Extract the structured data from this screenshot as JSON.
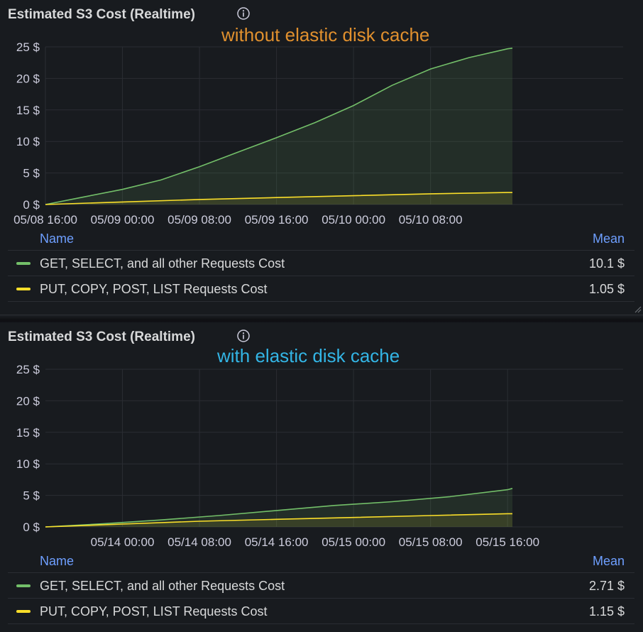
{
  "colors": {
    "get": "#73bf69",
    "put": "#fade2a",
    "annotation_top": "#e0902e",
    "annotation_bottom": "#33b5e5",
    "header": "#6e9fff"
  },
  "panels": [
    {
      "title": "Estimated S3 Cost (Realtime)",
      "annotation": "without elastic disk cache",
      "legend": {
        "name_header": "Name",
        "mean_header": "Mean",
        "rows": [
          {
            "name": "GET, SELECT, and all other Requests Cost",
            "mean": "10.1 $"
          },
          {
            "name": "PUT, COPY, POST, LIST Requests Cost",
            "mean": "1.05 $"
          }
        ]
      }
    },
    {
      "title": "Estimated S3 Cost (Realtime)",
      "annotation": "with elastic disk cache",
      "legend": {
        "name_header": "Name",
        "mean_header": "Mean",
        "rows": [
          {
            "name": "GET, SELECT, and all other Requests Cost",
            "mean": "2.71 $"
          },
          {
            "name": "PUT, COPY, POST, LIST Requests Cost",
            "mean": "1.15 $"
          }
        ]
      }
    }
  ],
  "chart_data": [
    {
      "type": "area",
      "title": "Estimated S3 Cost (Realtime)",
      "annotation": "without elastic disk cache",
      "x_unit": "hours",
      "x_range": [
        0,
        60
      ],
      "xticks": [
        {
          "x": 0,
          "label": "05/08 16:00"
        },
        {
          "x": 8,
          "label": "05/09 00:00"
        },
        {
          "x": 16,
          "label": "05/09 08:00"
        },
        {
          "x": 24,
          "label": "05/09 16:00"
        },
        {
          "x": 32,
          "label": "05/10 00:00"
        },
        {
          "x": 40,
          "label": "05/10 08:00"
        }
      ],
      "ylim": [
        0,
        25
      ],
      "yticks": [
        "0 $",
        "5 $",
        "10 $",
        "15 $",
        "20 $",
        "25 $"
      ],
      "ytick_values": [
        0,
        5,
        10,
        15,
        20,
        25
      ],
      "grid": true,
      "series": [
        {
          "name": "GET, SELECT, and all other Requests Cost",
          "color": "#73bf69",
          "x": [
            0,
            4,
            8,
            12,
            16,
            20,
            24,
            28,
            32,
            36,
            40,
            44,
            48,
            48.5
          ],
          "y": [
            0,
            1.2,
            2.4,
            3.9,
            6.0,
            8.3,
            10.6,
            13.0,
            15.7,
            18.9,
            21.5,
            23.3,
            24.7,
            24.8
          ]
        },
        {
          "name": "PUT, COPY, POST, LIST Requests Cost",
          "color": "#fade2a",
          "x": [
            0,
            8,
            16,
            24,
            32,
            40,
            48,
            48.5
          ],
          "y": [
            0,
            0.4,
            0.8,
            1.1,
            1.4,
            1.7,
            1.9,
            1.9
          ]
        }
      ]
    },
    {
      "type": "area",
      "title": "Estimated S3 Cost (Realtime)",
      "annotation": "with elastic disk cache",
      "x_unit": "hours",
      "x_range": [
        0,
        60
      ],
      "xticks": [
        {
          "x": 8,
          "label": "05/14 00:00"
        },
        {
          "x": 16,
          "label": "05/14 08:00"
        },
        {
          "x": 24,
          "label": "05/14 16:00"
        },
        {
          "x": 32,
          "label": "05/15 00:00"
        },
        {
          "x": 40,
          "label": "05/15 08:00"
        },
        {
          "x": 48,
          "label": "05/15 16:00"
        }
      ],
      "ylim": [
        0,
        25
      ],
      "yticks": [
        "0 $",
        "5 $",
        "10 $",
        "15 $",
        "20 $",
        "25 $"
      ],
      "ytick_values": [
        0,
        5,
        10,
        15,
        20,
        25
      ],
      "grid": true,
      "series": [
        {
          "name": "GET, SELECT, and all other Requests Cost",
          "color": "#73bf69",
          "x": [
            0,
            6,
            12,
            18,
            24,
            30,
            36,
            42,
            48,
            48.5
          ],
          "y": [
            0,
            0.5,
            1.1,
            1.8,
            2.6,
            3.4,
            4.0,
            4.8,
            5.9,
            6.1
          ]
        },
        {
          "name": "PUT, COPY, POST, LIST Requests Cost",
          "color": "#fade2a",
          "x": [
            0,
            8,
            16,
            24,
            32,
            40,
            48,
            48.5
          ],
          "y": [
            0,
            0.45,
            0.9,
            1.2,
            1.5,
            1.8,
            2.1,
            2.1
          ]
        }
      ]
    }
  ]
}
